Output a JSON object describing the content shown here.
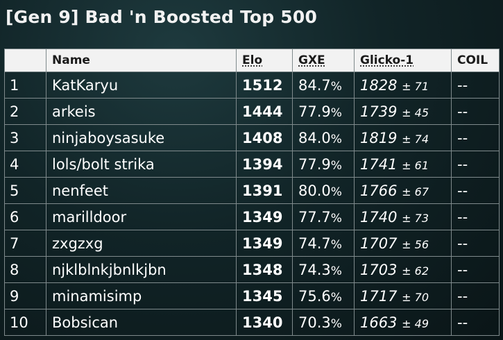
{
  "title": "[Gen 9] Bad 'n Boosted Top 500",
  "columns": {
    "rank": "",
    "name": "Name",
    "elo": "Elo",
    "gxe": "GXE",
    "glicko": "Glicko-1",
    "coil": "COIL"
  },
  "rows": [
    {
      "rank": "1",
      "name": "KatKaryu",
      "elo": "1512",
      "gxe": "84.7",
      "glicko": "1828",
      "dev": "± 71",
      "coil": "--"
    },
    {
      "rank": "2",
      "name": "arkeis",
      "elo": "1444",
      "gxe": "77.9",
      "glicko": "1739",
      "dev": "± 45",
      "coil": "--"
    },
    {
      "rank": "3",
      "name": "ninjaboysasuke",
      "elo": "1408",
      "gxe": "84.0",
      "glicko": "1819",
      "dev": "± 74",
      "coil": "--"
    },
    {
      "rank": "4",
      "name": "lols/bolt strika",
      "elo": "1394",
      "gxe": "77.9",
      "glicko": "1741",
      "dev": "± 61",
      "coil": "--"
    },
    {
      "rank": "5",
      "name": "nenfeet",
      "elo": "1391",
      "gxe": "80.0",
      "glicko": "1766",
      "dev": "± 67",
      "coil": "--"
    },
    {
      "rank": "6",
      "name": "marilldoor",
      "elo": "1349",
      "gxe": "77.7",
      "glicko": "1740",
      "dev": "± 73",
      "coil": "--"
    },
    {
      "rank": "7",
      "name": "zxgzxg",
      "elo": "1349",
      "gxe": "74.7",
      "glicko": "1707",
      "dev": "± 56",
      "coil": "--"
    },
    {
      "rank": "8",
      "name": "njklblnkjbnlkjbn",
      "elo": "1348",
      "gxe": "74.3",
      "glicko": "1703",
      "dev": "± 62",
      "coil": "--"
    },
    {
      "rank": "9",
      "name": "minamisimp",
      "elo": "1345",
      "gxe": "75.6",
      "glicko": "1717",
      "dev": "± 70",
      "coil": "--"
    },
    {
      "rank": "10",
      "name": "Bobsican",
      "elo": "1340",
      "gxe": "70.3",
      "glicko": "1663",
      "dev": "± 49",
      "coil": "--"
    }
  ],
  "percent_sign": "%"
}
